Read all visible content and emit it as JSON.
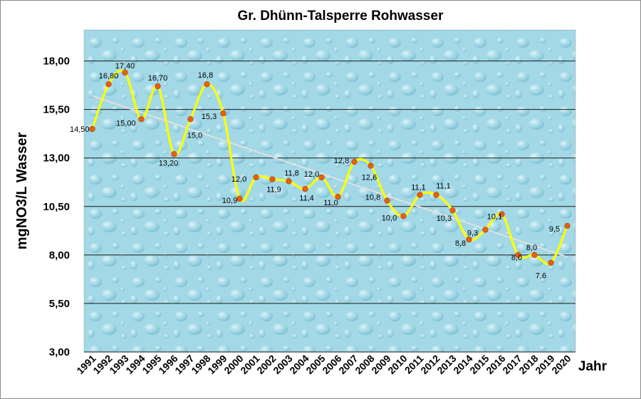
{
  "chart_data": {
    "type": "line",
    "title": "Gr. Dhünn-Talsperre Rohwasser",
    "ylabel": "mgNO3/L Wasser",
    "xlabel": "Jahr",
    "ylim": [
      3.0,
      19.6
    ],
    "yticks": [
      "3,00",
      "5,50",
      "8,00",
      "10,50",
      "13,00",
      "15,50",
      "18,00"
    ],
    "ytick_values": [
      3.0,
      5.5,
      8.0,
      10.5,
      13.0,
      15.5,
      18.0
    ],
    "categories": [
      "1991",
      "1992",
      "1993",
      "1994",
      "1995",
      "1996",
      "1997",
      "1998",
      "1999",
      "2000",
      "2001",
      "2002",
      "2003",
      "2004",
      "2005",
      "2006",
      "2007",
      "2008",
      "2009",
      "2010",
      "2011",
      "2012",
      "2013",
      "2014",
      "2015",
      "2016",
      "2017",
      "2018",
      "2019",
      "2020"
    ],
    "series": [
      {
        "values": [
          14.5,
          16.8,
          17.4,
          15.0,
          16.7,
          13.2,
          15.0,
          16.8,
          15.3,
          10.9,
          12.0,
          11.9,
          11.8,
          11.4,
          12.0,
          11.0,
          12.8,
          12.6,
          10.8,
          10.0,
          11.1,
          11.1,
          10.3,
          8.8,
          9.3,
          10.1,
          8.0,
          8.0,
          7.6,
          9.5
        ],
        "labels": [
          "14,50",
          "16,80",
          "17,40",
          "15,00",
          "16,70",
          "13,20",
          "15,0",
          "16,8",
          "15,3",
          "10,9",
          "12,0",
          "11,9",
          "11,8",
          "11,4",
          "12,0",
          "11,0",
          "12,8",
          "12,6",
          "10,8",
          "10,0",
          "11,1",
          "11,1",
          "10,3",
          "8,8",
          "9,3",
          "10,1",
          "8,0",
          "8,0",
          "7,6",
          "9,5"
        ],
        "color": "#ffff00",
        "marker_color": "#e8600a"
      }
    ],
    "trendline": {
      "start_value": 16.2,
      "end_value": 7.9,
      "color": "#e0e0e0"
    },
    "grid": true,
    "plot_background": "#9fd6e4"
  }
}
